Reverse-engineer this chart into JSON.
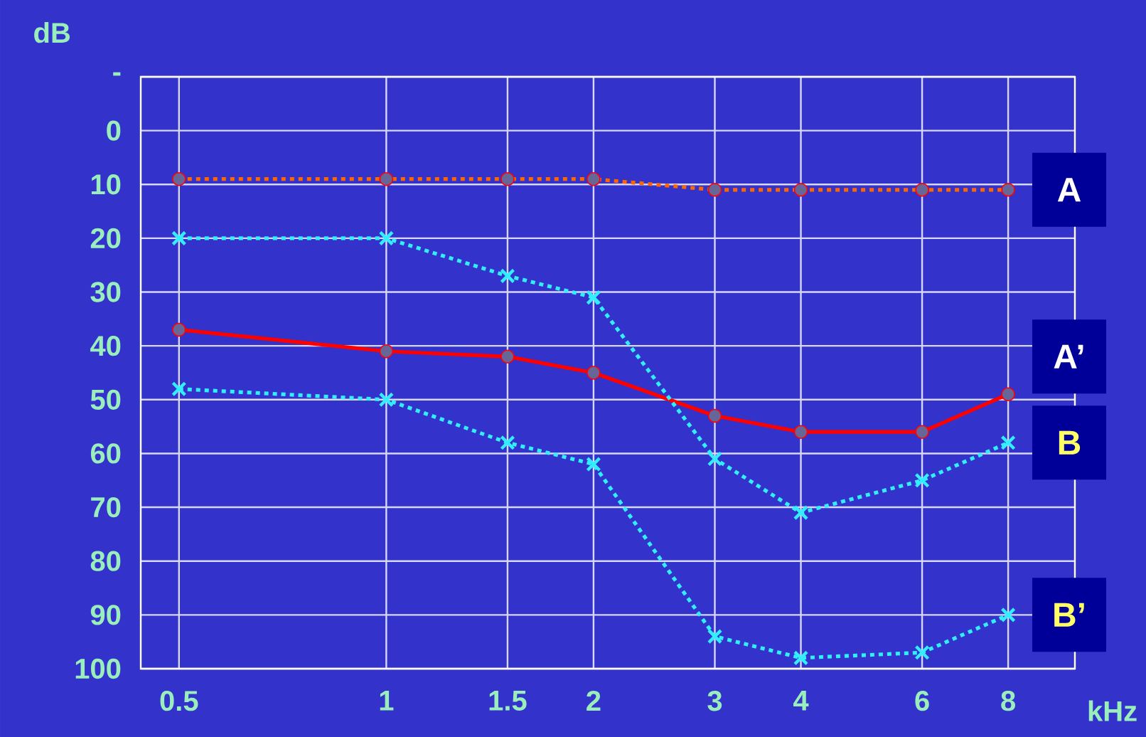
{
  "chart_data": {
    "type": "line",
    "xlabel": "kHz",
    "ylabel": "dB",
    "x": [
      0.5,
      1,
      1.5,
      2,
      3,
      4,
      6,
      8
    ],
    "log": "x",
    "xlim": [
      0.44,
      10
    ],
    "xticks": [
      0.5,
      1,
      1.5,
      2,
      3,
      4,
      6,
      8
    ],
    "ylim": [
      100,
      -10
    ],
    "yticks": [
      {
        "value": -10,
        "label": "-"
      },
      0,
      10,
      20,
      30,
      40,
      50,
      60,
      70,
      80,
      90,
      100
    ],
    "grid": true,
    "series": [
      {
        "name": "A",
        "color": "#ff6600",
        "marker": "circle",
        "line_style": "dotted",
        "values": [
          9,
          9,
          9,
          9,
          11,
          11,
          11,
          11
        ]
      },
      {
        "name": "A’",
        "color": "#ff0000",
        "marker": "circle",
        "line_style": "solid",
        "values": [
          37,
          41,
          42,
          45,
          53,
          56,
          56,
          49
        ]
      },
      {
        "name": "B",
        "color": "#33eeff",
        "marker": "cross",
        "line_style": "dotted",
        "values": [
          20,
          20,
          27,
          31,
          61,
          71,
          65,
          58
        ]
      },
      {
        "name": "B’",
        "color": "#33eeff",
        "marker": "cross",
        "line_style": "dotted",
        "values": [
          48,
          50,
          58,
          62,
          94,
          98,
          97,
          90
        ]
      }
    ]
  }
}
